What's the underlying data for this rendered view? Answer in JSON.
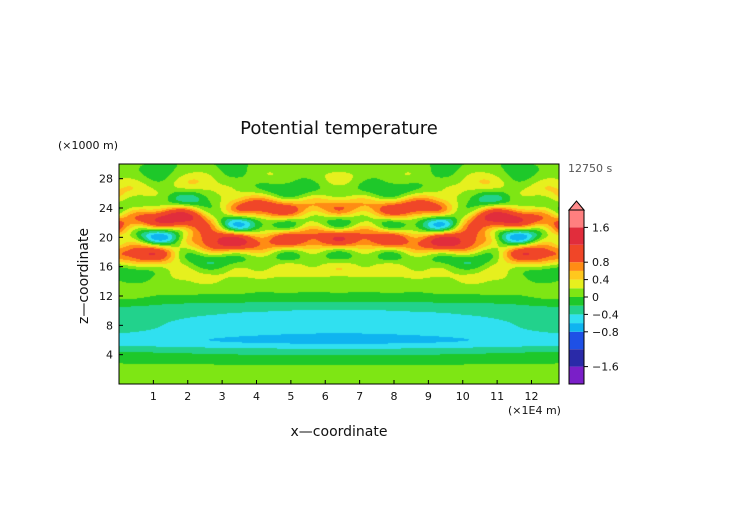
{
  "chart_data": {
    "type": "heatmap",
    "title": "Potential temperature",
    "xlabel": "x—coordinate",
    "ylabel": "z—coordinate",
    "x_unit": "(×1E4 m)",
    "y_unit": "(×1000 m)",
    "time_label": "12750 s",
    "xlim": [
      0,
      12.8
    ],
    "ylim": [
      0,
      30
    ],
    "x_ticks": [
      "1",
      "2",
      "3",
      "4",
      "5",
      "6",
      "7",
      "8",
      "9",
      "10",
      "11",
      "12"
    ],
    "y_ticks": [
      "4",
      "8",
      "12",
      "16",
      "20",
      "24",
      "28"
    ],
    "colorbar": {
      "levels": [
        -2.0,
        -1.6,
        -1.2,
        -0.8,
        -0.6,
        -0.4,
        -0.2,
        0,
        0.2,
        0.4,
        0.6,
        0.8,
        1.2,
        1.6,
        2.0
      ],
      "colors": [
        "#7a1fc8",
        "#2a2aa8",
        "#1e50e6",
        "#0fb4f0",
        "#30e0f0",
        "#22d28c",
        "#1ec82a",
        "#7ee614",
        "#e6f01e",
        "#ffc81e",
        "#ff8c14",
        "#f04628",
        "#e12d3c",
        "#ff7f7f"
      ],
      "tick_labels": [
        "1.6",
        "0.8",
        "0.4",
        "0",
        "−0.4",
        "−0.8",
        "−1.6"
      ],
      "extend_color": "#ff8c8c"
    },
    "field_description_values": {
      "upper_band_z_range": [
        14,
        30
      ],
      "upper_band_max": 1.6,
      "lower_band_min": -0.8
    }
  }
}
